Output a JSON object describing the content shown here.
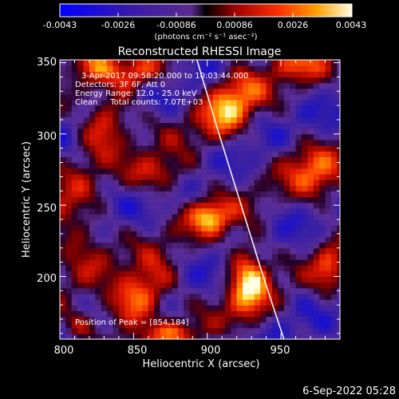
{
  "chart_data": {
    "type": "heatmap",
    "title": "Reconstructed RHESSI Image",
    "xlabel": "Heliocentric X (arcsec)",
    "ylabel": "Heliocentric Y (arcsec)",
    "xlim": [
      800,
      990
    ],
    "ylim": [
      156,
      352
    ],
    "x_ticks": [
      "800",
      "850",
      "900",
      "950"
    ],
    "y_ticks": [
      "200",
      "250",
      "300",
      "350"
    ],
    "colorbar": {
      "range": [
        -0.0043,
        0.0043
      ],
      "ticks": [
        "-0.0043",
        "-0.0026",
        "-0.00086",
        "0.00086",
        "0.0026",
        "0.0043"
      ],
      "unit_label": "(photons cm⁻² s⁻¹ asec⁻²)"
    },
    "annotations": [
      "3-Apr-2017 09:58:20.000 to 10:03:44.000",
      "Detectors: 3F 6F, Att 0",
      "Energy Range: 12.0 - 25.0 keV",
      "Clean     Total counts: 7.07E+03"
    ],
    "peak_label": "Position of Peak = [854,184]",
    "peak": {
      "x": 854,
      "y": 184
    },
    "sources": [
      {
        "x": 854,
        "y": 186,
        "sx": 20,
        "sy": 11,
        "angle": 45,
        "amp": 0.0043
      },
      {
        "x": 928,
        "y": 198,
        "sx": 10,
        "sy": 22,
        "angle": 0,
        "amp": 0.0038
      },
      {
        "x": 902,
        "y": 242,
        "sx": 10,
        "sy": 9,
        "angle": 0,
        "amp": 0.0035
      },
      {
        "x": 916,
        "y": 322,
        "sx": 20,
        "sy": 12,
        "angle": 60,
        "amp": 0.0033
      },
      {
        "x": 831,
        "y": 307,
        "sx": 18,
        "sy": 10,
        "angle": 55,
        "amp": 0.0032
      },
      {
        "x": 810,
        "y": 234,
        "sx": 14,
        "sy": 22,
        "angle": 20,
        "amp": 0.002
      },
      {
        "x": 869,
        "y": 272,
        "sx": 16,
        "sy": 10,
        "angle": 10,
        "amp": 0.0022
      },
      {
        "x": 973,
        "y": 272,
        "sx": 12,
        "sy": 18,
        "angle": 40,
        "amp": 0.0024
      },
      {
        "x": 983,
        "y": 205,
        "sx": 8,
        "sy": 14,
        "angle": 0,
        "amp": 0.0018
      },
      {
        "x": 855,
        "y": 343,
        "sx": 14,
        "sy": 8,
        "angle": 0,
        "amp": 0.0022
      },
      {
        "x": 961,
        "y": 350,
        "sx": 14,
        "sy": 8,
        "angle": 0,
        "amp": 0.002
      },
      {
        "x": 822,
        "y": 350,
        "sx": 10,
        "sy": 8,
        "angle": 0,
        "amp": 0.0018
      },
      {
        "x": 812,
        "y": 165,
        "sx": 10,
        "sy": 8,
        "angle": 0,
        "amp": 0.0016
      },
      {
        "x": 878,
        "y": 160,
        "sx": 14,
        "sy": 6,
        "angle": 0,
        "amp": 0.0016
      }
    ],
    "background_level": -0.00086,
    "limb_curve": [
      [
        893,
        352
      ],
      [
        908,
        300
      ],
      [
        923,
        250
      ],
      [
        938,
        200
      ],
      [
        952,
        156
      ]
    ]
  },
  "footer": {
    "date": "6-Sep-2022 05:28"
  }
}
